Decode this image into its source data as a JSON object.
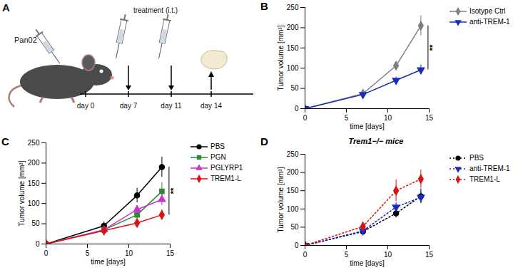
{
  "diagram": {
    "panel_label": "A",
    "cell_line": "Pan02",
    "treatment": "treatment (i.t.)",
    "timeline": [
      "day 0",
      "day 7",
      "day 11",
      "day 14"
    ]
  },
  "chart_data": [
    {
      "type": "line",
      "panel_label": "B",
      "x_label": "time [days]",
      "y_label": "Tumor volume [mm³]",
      "x": [
        0,
        7,
        11,
        14
      ],
      "xlim": [
        0,
        15
      ],
      "xticks": [
        0,
        5,
        10,
        15
      ],
      "ylim": [
        0,
        250
      ],
      "yticks": [
        0,
        50,
        100,
        150,
        200,
        250
      ],
      "legend": "right",
      "series": [
        {
          "name": "Isotype Ctrl",
          "color": "#7f7f7f",
          "marker": "diamond",
          "line_style": "solid",
          "values": [
            0,
            37,
            106,
            205
          ],
          "error": [
            0,
            3,
            10,
            25
          ]
        },
        {
          "name": "anti-TREM-1",
          "color": "#1a2bbf",
          "marker": "triangle-down",
          "line_style": "solid",
          "values": [
            0,
            35,
            70,
            96
          ],
          "error": [
            0,
            3,
            8,
            12
          ]
        }
      ],
      "annotations": [
        {
          "text": "**",
          "between": [
            "Isotype Ctrl",
            "anti-TREM-1"
          ]
        }
      ]
    },
    {
      "type": "line",
      "panel_label": "C",
      "x_label": "time [days]",
      "y_label": "Tumor volume [mm³]",
      "x": [
        0,
        7,
        11,
        14
      ],
      "xlim": [
        0,
        15
      ],
      "xticks": [
        0,
        5,
        10,
        15
      ],
      "ylim": [
        0,
        250
      ],
      "yticks": [
        0,
        50,
        100,
        150,
        200,
        250
      ],
      "legend": "right",
      "series": [
        {
          "name": "PBS",
          "color": "#000000",
          "marker": "circle",
          "line_style": "solid",
          "values": [
            0,
            45,
            120,
            190
          ],
          "error": [
            0,
            10,
            18,
            25
          ]
        },
        {
          "name": "PGN",
          "color": "#2e8b2e",
          "marker": "square",
          "line_style": "solid",
          "values": [
            0,
            35,
            72,
            130
          ],
          "error": [
            0,
            5,
            10,
            22
          ]
        },
        {
          "name": "PGLYRP1",
          "color": "#cc33cc",
          "marker": "triangle",
          "line_style": "solid",
          "values": [
            0,
            35,
            85,
            110
          ],
          "error": [
            0,
            4,
            10,
            15
          ]
        },
        {
          "name": "TREM1-L",
          "color": "#dd1111",
          "marker": "diamond",
          "line_style": "solid",
          "values": [
            0,
            33,
            52,
            72
          ],
          "error": [
            0,
            3,
            6,
            12
          ]
        }
      ],
      "annotations": [
        {
          "text": "**",
          "between": [
            "PBS",
            "TREM1-L"
          ]
        }
      ]
    },
    {
      "type": "line",
      "panel_label": "D",
      "title": "Trem1−/− mice",
      "x_label": "time [days]",
      "y_label": "Tumor volume [mm³]",
      "x": [
        0,
        7,
        11,
        14
      ],
      "xlim": [
        0,
        15
      ],
      "xticks": [
        0,
        5,
        10,
        15
      ],
      "ylim": [
        0,
        250
      ],
      "yticks": [
        0,
        50,
        100,
        150,
        200,
        250
      ],
      "legend": "right",
      "series": [
        {
          "name": "PBS",
          "color": "#000000",
          "marker": "circle",
          "line_style": "dotted",
          "values": [
            0,
            38,
            88,
            135
          ],
          "error": [
            0,
            6,
            12,
            20
          ]
        },
        {
          "name": "anti-TREM-1",
          "color": "#1a2bbf",
          "marker": "triangle-down",
          "line_style": "dotted",
          "values": [
            0,
            40,
            105,
            132
          ],
          "error": [
            0,
            6,
            12,
            15
          ]
        },
        {
          "name": "TREM1-L",
          "color": "#dd1111",
          "marker": "diamond",
          "line_style": "dotted",
          "values": [
            0,
            52,
            150,
            182
          ],
          "error": [
            0,
            8,
            30,
            25
          ]
        }
      ]
    }
  ]
}
